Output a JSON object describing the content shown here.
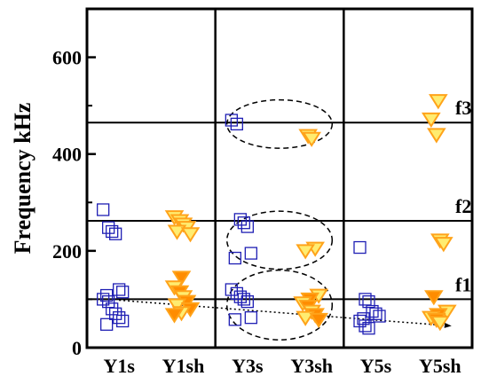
{
  "chart_data": {
    "type": "scatter",
    "ylabel": "Frequency kHz",
    "ylim": [
      0,
      700
    ],
    "yticks": [
      0,
      200,
      400,
      600
    ],
    "categories": [
      "Y1s",
      "Y1sh",
      "Y3s",
      "Y3sh",
      "Y5s",
      "Y5sh"
    ],
    "group_dividers": [
      2,
      4
    ],
    "marker_colors": {
      "square": "#1f1fb4",
      "triangle_stroke": "#ffa31a",
      "triangle_fill": "#ffec70",
      "triangle_solid": "#ff8c00"
    },
    "reference_lines": [
      {
        "label": "f3",
        "y": 465
      },
      {
        "label": "f2",
        "y": 262
      },
      {
        "label": "f1",
        "y": 100
      }
    ],
    "series": [
      {
        "marker": "square",
        "points": [
          {
            "c": 0,
            "y": 285
          },
          {
            "c": 0,
            "y": 248
          },
          {
            "c": 0,
            "y": 240
          },
          {
            "c": 0,
            "y": 235
          },
          {
            "c": 0,
            "y": 120
          },
          {
            "c": 0,
            "y": 115
          },
          {
            "c": 0,
            "y": 108
          },
          {
            "c": 0,
            "y": 100
          },
          {
            "c": 0,
            "y": 95
          },
          {
            "c": 0,
            "y": 80
          },
          {
            "c": 0,
            "y": 70
          },
          {
            "c": 0,
            "y": 62
          },
          {
            "c": 0,
            "y": 55
          },
          {
            "c": 0,
            "y": 48
          },
          {
            "c": 2,
            "y": 470
          },
          {
            "c": 2,
            "y": 462
          },
          {
            "c": 2,
            "y": 265
          },
          {
            "c": 2,
            "y": 258
          },
          {
            "c": 2,
            "y": 250
          },
          {
            "c": 2,
            "y": 195
          },
          {
            "c": 2,
            "y": 185
          },
          {
            "c": 2,
            "y": 120
          },
          {
            "c": 2,
            "y": 112
          },
          {
            "c": 2,
            "y": 105
          },
          {
            "c": 2,
            "y": 100
          },
          {
            "c": 2,
            "y": 95
          },
          {
            "c": 2,
            "y": 62
          },
          {
            "c": 2,
            "y": 58
          },
          {
            "c": 4,
            "y": 207
          },
          {
            "c": 4,
            "y": 100
          },
          {
            "c": 4,
            "y": 95
          },
          {
            "c": 4,
            "y": 75
          },
          {
            "c": 4,
            "y": 70
          },
          {
            "c": 4,
            "y": 65
          },
          {
            "c": 4,
            "y": 60
          },
          {
            "c": 4,
            "y": 55
          },
          {
            "c": 4,
            "y": 45
          },
          {
            "c": 4,
            "y": 40
          }
        ]
      },
      {
        "marker": "triangle",
        "points": [
          {
            "c": 1,
            "y": 270
          },
          {
            "c": 1,
            "y": 262
          },
          {
            "c": 1,
            "y": 255
          },
          {
            "c": 1,
            "y": 248
          },
          {
            "c": 1,
            "y": 240
          },
          {
            "c": 1,
            "y": 235
          },
          {
            "c": 1,
            "y": 145
          },
          {
            "c": 1,
            "y": 125
          },
          {
            "c": 1,
            "y": 115
          },
          {
            "c": 1,
            "y": 105
          },
          {
            "c": 1,
            "y": 95
          },
          {
            "c": 1,
            "y": 88
          },
          {
            "c": 1,
            "y": 80
          },
          {
            "c": 1,
            "y": 72
          },
          {
            "c": 1,
            "y": 68
          },
          {
            "c": 3,
            "y": 438
          },
          {
            "c": 3,
            "y": 432
          },
          {
            "c": 3,
            "y": 205
          },
          {
            "c": 3,
            "y": 200
          },
          {
            "c": 3,
            "y": 108
          },
          {
            "c": 3,
            "y": 100
          },
          {
            "c": 3,
            "y": 92
          },
          {
            "c": 3,
            "y": 85
          },
          {
            "c": 3,
            "y": 75
          },
          {
            "c": 3,
            "y": 68
          },
          {
            "c": 3,
            "y": 62
          },
          {
            "c": 3,
            "y": 58
          },
          {
            "c": 5,
            "y": 510
          },
          {
            "c": 5,
            "y": 472
          },
          {
            "c": 5,
            "y": 440
          },
          {
            "c": 5,
            "y": 222
          },
          {
            "c": 5,
            "y": 215
          },
          {
            "c": 5,
            "y": 105
          },
          {
            "c": 5,
            "y": 75
          },
          {
            "c": 5,
            "y": 68
          },
          {
            "c": 5,
            "y": 62
          },
          {
            "c": 5,
            "y": 58
          },
          {
            "c": 5,
            "y": 52
          }
        ]
      }
    ],
    "trend_arrow": {
      "from": {
        "c": 0,
        "y": 98
      },
      "to": {
        "c": 5,
        "y": 45
      }
    },
    "ellipses": [
      {
        "c": 2.5,
        "y": 462,
        "ry": 50
      },
      {
        "c": 2.5,
        "y": 222,
        "ry": 60
      },
      {
        "c": 2.5,
        "y": 88,
        "ry": 72
      }
    ]
  }
}
